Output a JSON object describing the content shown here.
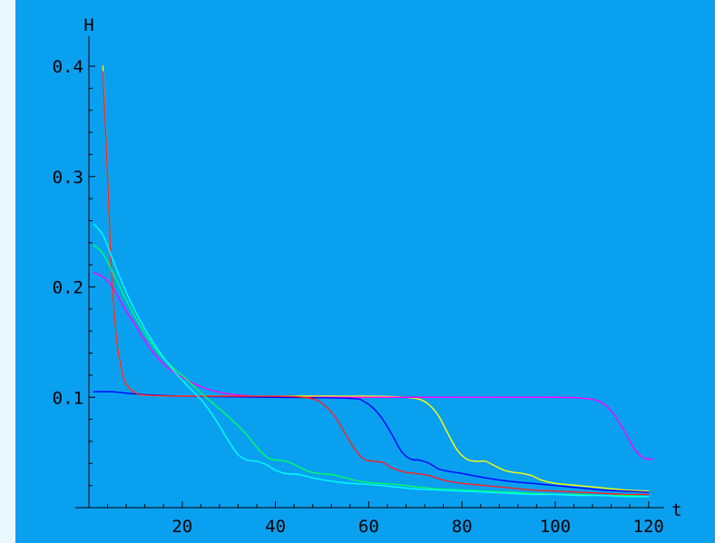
{
  "colors": {
    "page_background": "#e8f8fc",
    "plot_background": "#0aa0f0",
    "axis": "#000000"
  },
  "chart_data": {
    "type": "line",
    "title": "",
    "xlabel": "t",
    "ylabel": "H",
    "xlim": [
      0,
      122
    ],
    "ylim": [
      0,
      0.4
    ],
    "x_ticks": [
      20,
      40,
      60,
      80,
      100,
      120
    ],
    "y_ticks": [
      0.1,
      0.2,
      0.3,
      0.4
    ],
    "x_tick_labels": [
      "20",
      "40",
      "60",
      "80",
      100,
      120
    ],
    "y_tick_labels": [
      "0.1",
      "0.2",
      "0.3",
      "0.4"
    ],
    "grid": false,
    "legend": "none",
    "series": [
      {
        "color": "#ffff00",
        "points": [
          [
            3,
            0.4
          ],
          [
            4,
            0.3
          ],
          [
            5,
            0.2
          ],
          [
            6,
            0.15
          ],
          [
            7,
            0.125
          ],
          [
            8,
            0.112
          ],
          [
            10,
            0.104
          ],
          [
            12,
            0.102
          ],
          [
            20,
            0.101
          ],
          [
            40,
            0.101
          ],
          [
            60,
            0.101
          ],
          [
            68,
            0.1
          ],
          [
            71,
            0.098
          ],
          [
            73,
            0.093
          ],
          [
            75,
            0.083
          ],
          [
            77,
            0.067
          ],
          [
            79,
            0.052
          ],
          [
            81,
            0.044
          ],
          [
            83,
            0.042
          ],
          [
            85,
            0.042
          ],
          [
            87,
            0.038
          ],
          [
            89,
            0.034
          ],
          [
            91,
            0.032
          ],
          [
            93,
            0.031
          ],
          [
            95,
            0.029
          ],
          [
            97,
            0.025
          ],
          [
            100,
            0.022
          ],
          [
            105,
            0.02
          ],
          [
            110,
            0.018
          ],
          [
            115,
            0.016
          ],
          [
            120,
            0.015
          ]
        ]
      },
      {
        "color": "#ff00ff",
        "points": [
          [
            1,
            0.213
          ],
          [
            3,
            0.209
          ],
          [
            5,
            0.2
          ],
          [
            8,
            0.178
          ],
          [
            10,
            0.165
          ],
          [
            13,
            0.145
          ],
          [
            16,
            0.13
          ],
          [
            20,
            0.118
          ],
          [
            25,
            0.108
          ],
          [
            30,
            0.103
          ],
          [
            35,
            0.101
          ],
          [
            40,
            0.1
          ],
          [
            50,
            0.1
          ],
          [
            60,
            0.1
          ],
          [
            70,
            0.1
          ],
          [
            100,
            0.1
          ],
          [
            106,
            0.099
          ],
          [
            109,
            0.097
          ],
          [
            111,
            0.092
          ],
          [
            113,
            0.082
          ],
          [
            115,
            0.068
          ],
          [
            117,
            0.053
          ],
          [
            119,
            0.045
          ],
          [
            121,
            0.044
          ]
        ]
      },
      {
        "color": "#0000ff",
        "points": [
          [
            1,
            0.105
          ],
          [
            5,
            0.105
          ],
          [
            10,
            0.103
          ],
          [
            20,
            0.101
          ],
          [
            40,
            0.1
          ],
          [
            56,
            0.099
          ],
          [
            59,
            0.096
          ],
          [
            61,
            0.09
          ],
          [
            63,
            0.08
          ],
          [
            65,
            0.066
          ],
          [
            67,
            0.051
          ],
          [
            69,
            0.044
          ],
          [
            71,
            0.043
          ],
          [
            73,
            0.04
          ],
          [
            75,
            0.035
          ],
          [
            77,
            0.033
          ],
          [
            80,
            0.031
          ],
          [
            85,
            0.027
          ],
          [
            90,
            0.024
          ],
          [
            95,
            0.022
          ],
          [
            100,
            0.02
          ],
          [
            105,
            0.018
          ],
          [
            110,
            0.016
          ],
          [
            115,
            0.015
          ],
          [
            120,
            0.014
          ]
        ]
      },
      {
        "color": "#ff2020",
        "points": [
          [
            3,
            0.395
          ],
          [
            4,
            0.3
          ],
          [
            5,
            0.2
          ],
          [
            6,
            0.15
          ],
          [
            7,
            0.125
          ],
          [
            8,
            0.112
          ],
          [
            10,
            0.104
          ],
          [
            12,
            0.102
          ],
          [
            20,
            0.101
          ],
          [
            40,
            0.101
          ],
          [
            46,
            0.1
          ],
          [
            49,
            0.097
          ],
          [
            51,
            0.091
          ],
          [
            53,
            0.081
          ],
          [
            55,
            0.067
          ],
          [
            57,
            0.053
          ],
          [
            59,
            0.044
          ],
          [
            61,
            0.042
          ],
          [
            63,
            0.041
          ],
          [
            65,
            0.036
          ],
          [
            68,
            0.032
          ],
          [
            70,
            0.031
          ],
          [
            73,
            0.029
          ],
          [
            76,
            0.025
          ],
          [
            80,
            0.022
          ],
          [
            85,
            0.02
          ],
          [
            90,
            0.018
          ],
          [
            95,
            0.016
          ],
          [
            100,
            0.015
          ],
          [
            105,
            0.014
          ],
          [
            110,
            0.013
          ],
          [
            115,
            0.012
          ],
          [
            120,
            0.012
          ]
        ]
      },
      {
        "color": "#00ff60",
        "points": [
          [
            1,
            0.238
          ],
          [
            3,
            0.23
          ],
          [
            5,
            0.214
          ],
          [
            8,
            0.188
          ],
          [
            10,
            0.172
          ],
          [
            12,
            0.158
          ],
          [
            15,
            0.14
          ],
          [
            18,
            0.127
          ],
          [
            21,
            0.116
          ],
          [
            24,
            0.104
          ],
          [
            27,
            0.093
          ],
          [
            30,
            0.082
          ],
          [
            33,
            0.07
          ],
          [
            35,
            0.06
          ],
          [
            37,
            0.05
          ],
          [
            39,
            0.044
          ],
          [
            41,
            0.043
          ],
          [
            43,
            0.041
          ],
          [
            45,
            0.037
          ],
          [
            47,
            0.033
          ],
          [
            49,
            0.031
          ],
          [
            52,
            0.03
          ],
          [
            55,
            0.027
          ],
          [
            58,
            0.024
          ],
          [
            62,
            0.022
          ],
          [
            66,
            0.021
          ],
          [
            70,
            0.019
          ],
          [
            75,
            0.017
          ],
          [
            80,
            0.016
          ],
          [
            85,
            0.015
          ],
          [
            90,
            0.014
          ],
          [
            95,
            0.013
          ],
          [
            100,
            0.012
          ],
          [
            105,
            0.012
          ],
          [
            110,
            0.011
          ],
          [
            115,
            0.011
          ],
          [
            120,
            0.01
          ]
        ]
      },
      {
        "color": "#00ffff",
        "points": [
          [
            1,
            0.257
          ],
          [
            3,
            0.247
          ],
          [
            5,
            0.226
          ],
          [
            7,
            0.205
          ],
          [
            9,
            0.186
          ],
          [
            12,
            0.162
          ],
          [
            15,
            0.142
          ],
          [
            18,
            0.125
          ],
          [
            21,
            0.111
          ],
          [
            24,
            0.098
          ],
          [
            26,
            0.087
          ],
          [
            28,
            0.074
          ],
          [
            30,
            0.06
          ],
          [
            32,
            0.048
          ],
          [
            34,
            0.043
          ],
          [
            36,
            0.042
          ],
          [
            38,
            0.039
          ],
          [
            40,
            0.034
          ],
          [
            42,
            0.031
          ],
          [
            45,
            0.03
          ],
          [
            48,
            0.027
          ],
          [
            52,
            0.024
          ],
          [
            56,
            0.022
          ],
          [
            60,
            0.021
          ],
          [
            65,
            0.019
          ],
          [
            70,
            0.017
          ],
          [
            75,
            0.016
          ],
          [
            80,
            0.015
          ],
          [
            85,
            0.014
          ],
          [
            90,
            0.013
          ],
          [
            95,
            0.012
          ],
          [
            100,
            0.012
          ],
          [
            105,
            0.011
          ],
          [
            110,
            0.011
          ],
          [
            115,
            0.01
          ],
          [
            120,
            0.01
          ]
        ]
      }
    ]
  }
}
